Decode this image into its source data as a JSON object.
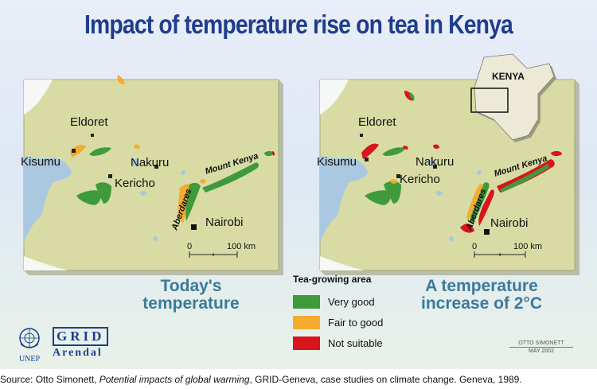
{
  "title": "Impact of temperature rise on tea in Kenya",
  "colors": {
    "land": "#d8dca4",
    "water": "#aac8e0",
    "very_good": "#3f9a3c",
    "fair_to_good": "#f5ab2e",
    "not_suitable": "#d9141c",
    "title": "#1f3d8c",
    "caption": "#3a7a9a"
  },
  "maps": {
    "left": {
      "caption_line1": "Today's",
      "caption_line2": "temperature"
    },
    "right": {
      "caption_line1": "A temperature",
      "caption_line2": "increase of 2°C"
    }
  },
  "places": {
    "eldoret": "Eldoret",
    "kisumu": "Kisumu",
    "nakuru": "Nakuru",
    "kericho": "Kericho",
    "nairobi": "Nairobi",
    "aberdares": "Aberdares",
    "mount_kenya": "Mount Kenya"
  },
  "scale_bar": {
    "start": "0",
    "end": "100 km"
  },
  "inset_label": "KENYA",
  "legend": {
    "title": "Tea-growing area",
    "items": [
      {
        "label": "Very good",
        "color": "#3f9a3c"
      },
      {
        "label": "Fair to good",
        "color": "#f5ab2e"
      },
      {
        "label": "Not suitable",
        "color": "#d9141c"
      }
    ]
  },
  "logos": {
    "unep": "UNEP",
    "grid": "GRID",
    "arendal": "Arendal"
  },
  "credit": {
    "name": "OTTO SIMONETT",
    "date": "MAY 2002"
  },
  "source": {
    "prefix": "Source: Otto Simonett, ",
    "italic": "Potential impacts of global warming",
    "suffix": ", GRID-Geneva, case studies on climate change. Geneva, 1989."
  }
}
